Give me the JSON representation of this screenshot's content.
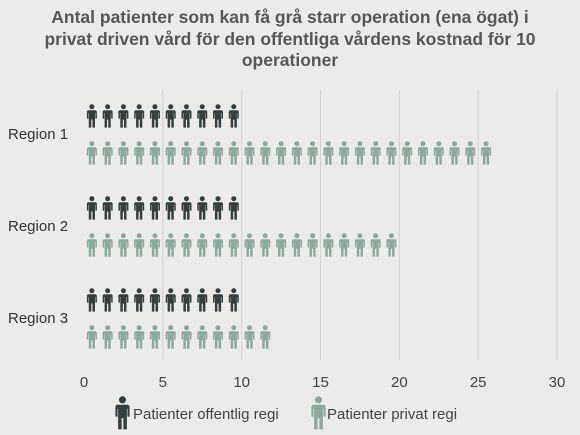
{
  "chart_data": {
    "type": "bar",
    "title": "Antal patienter som kan få grå starr operation (ena ögat) i privat driven vård för den offentliga vårdens kostnad för 10 operationer",
    "categories": [
      "Region 1",
      "Region 2",
      "Region 3"
    ],
    "series": [
      {
        "name": "Patienter offentlig regi",
        "values": [
          10,
          10,
          10
        ],
        "color": "#33403f",
        "icon": "person-icon"
      },
      {
        "name": "Patienter privat regi",
        "values": [
          26.8,
          20,
          12.7
        ],
        "color": "#8aaa9c",
        "icon": "person-icon"
      }
    ],
    "xlim": [
      0,
      30
    ],
    "xticks": [
      "0",
      "5",
      "10",
      "15",
      "20",
      "25",
      "30"
    ],
    "grid": true,
    "legend_position": "bottom"
  }
}
